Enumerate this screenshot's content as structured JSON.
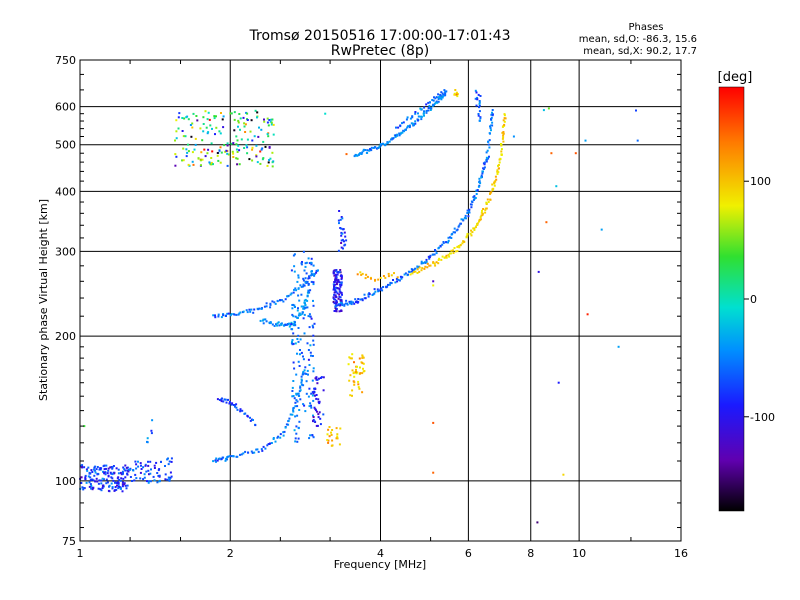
{
  "chart_data": {
    "type": "scatter",
    "title": "Tromsø 20150516 17:00:00-17:01:43",
    "subtitle": "RwPretec (8p)",
    "xlabel": "Frequency [MHz]",
    "ylabel": "Stationary phase Virtual Height [km]",
    "x_scale": "log2",
    "y_scale": "log",
    "xlim": [
      1,
      16
    ],
    "ylim": [
      75,
      750
    ],
    "x_ticks": [
      1,
      2,
      4,
      6,
      8,
      10,
      16
    ],
    "x_tick_labels": [
      "1",
      "2",
      "4",
      "6",
      "8",
      "10",
      "16"
    ],
    "y_ticks": [
      75,
      100,
      200,
      300,
      400,
      500,
      600,
      750
    ],
    "y_tick_labels": [
      "75",
      "100",
      "200",
      "300",
      "400",
      "500",
      "600",
      "750"
    ],
    "grid": true,
    "stats": {
      "header": "Phases",
      "line_o": "mean, sd,O: -86.3, 15.6",
      "line_x": "mean, sd,X:  90.2, 17.7"
    },
    "colorbar": {
      "label": "[deg]",
      "range": [
        -180,
        180
      ],
      "ticks": [
        100,
        0,
        -100
      ],
      "tick_labels": [
        "100",
        "0",
        "-100"
      ]
    },
    "series": [
      {
        "kind": "cloud",
        "x": [
          1.0,
          1.25
        ],
        "y": [
          95,
          108
        ],
        "phase": -112,
        "n": 170
      },
      {
        "kind": "cloud",
        "x": [
          1.25,
          1.46
        ],
        "y": [
          99,
          110
        ],
        "phase": -108,
        "n": 55
      },
      {
        "kind": "cloud",
        "x": [
          1.48,
          1.53
        ],
        "y": [
          100,
          112
        ],
        "phase": -105,
        "n": 18
      },
      {
        "kind": "cloud",
        "x": [
          1.36,
          1.4
        ],
        "y": [
          120,
          135
        ],
        "phase": -95,
        "n": 6
      },
      {
        "kind": "cloud",
        "x": [
          1.55,
          2.45
        ],
        "y": [
          450,
          590
        ],
        "phase": -20,
        "pspread": 170,
        "n": 200
      },
      {
        "kind": "curve",
        "x": [
          1.85,
          2.05,
          2.3,
          2.55,
          2.8,
          3.0
        ],
        "y": [
          220,
          222,
          228,
          238,
          255,
          275
        ],
        "phase": -100,
        "n": 80
      },
      {
        "kind": "curve",
        "x": [
          2.3,
          2.5,
          2.65,
          2.78,
          2.88
        ],
        "y": [
          215,
          212,
          210,
          225,
          248
        ],
        "phase": -85,
        "n": 60
      },
      {
        "kind": "curve",
        "x": [
          1.85,
          2.0,
          2.3,
          2.55,
          2.72,
          2.82
        ],
        "y": [
          110,
          112,
          116,
          125,
          145,
          170
        ],
        "phase": -95,
        "n": 85
      },
      {
        "kind": "curve",
        "x": [
          1.9,
          2.0,
          2.1,
          2.25
        ],
        "y": [
          148,
          146,
          140,
          131
        ],
        "phase": -110,
        "n": 35
      },
      {
        "kind": "cloud",
        "x": [
          2.65,
          2.95
        ],
        "y": [
          120,
          300
        ],
        "phase": -95,
        "n": 170
      },
      {
        "kind": "cloud",
        "x": [
          2.92,
          3.08
        ],
        "y": [
          130,
          165
        ],
        "phase": -125,
        "n": 40
      },
      {
        "kind": "cloud",
        "x": [
          3.22,
          3.35
        ],
        "y": [
          225,
          275
        ],
        "phase": -125,
        "n": 120
      },
      {
        "kind": "cloud",
        "x": [
          3.3,
          3.42
        ],
        "y": [
          300,
          370
        ],
        "phase": -115,
        "n": 25
      },
      {
        "kind": "curve",
        "x": [
          3.3,
          3.6,
          4.0,
          4.5,
          5.0,
          5.5,
          6.0,
          6.3,
          6.55
        ],
        "y": [
          232,
          237,
          250,
          268,
          290,
          320,
          360,
          410,
          470
        ],
        "phase": -100,
        "n": 170
      },
      {
        "kind": "curve",
        "x": [
          6.55,
          6.65,
          6.7
        ],
        "y": [
          470,
          540,
          590
        ],
        "phase": -100,
        "n": 25
      },
      {
        "kind": "curve",
        "x": [
          4.6,
          5.2,
          5.7,
          6.2,
          6.5,
          6.8,
          7.0,
          7.1
        ],
        "y": [
          270,
          285,
          305,
          335,
          370,
          420,
          490,
          580
        ],
        "phase": 110,
        "n": 140
      },
      {
        "kind": "curve",
        "x": [
          3.6,
          3.9,
          4.3
        ],
        "y": [
          270,
          262,
          268
        ],
        "phase": 125,
        "n": 20
      },
      {
        "kind": "curve",
        "x": [
          3.55,
          4.0,
          4.5,
          5.0,
          5.4
        ],
        "y": [
          475,
          495,
          540,
          590,
          640
        ],
        "phase": -90,
        "n": 120
      },
      {
        "kind": "curve",
        "x": [
          4.3,
          4.7,
          5.1,
          5.4
        ],
        "y": [
          540,
          580,
          620,
          650
        ],
        "phase": -100,
        "n": 35
      },
      {
        "kind": "cloud",
        "x": [
          6.2,
          6.35
        ],
        "y": [
          560,
          650
        ],
        "phase": -100,
        "n": 20
      },
      {
        "kind": "cloud",
        "x": [
          5.6,
          5.75
        ],
        "y": [
          630,
          650
        ],
        "phase": 115,
        "n": 8
      },
      {
        "kind": "cloud",
        "x": [
          3.45,
          3.72
        ],
        "y": [
          150,
          185
        ],
        "phase": 118,
        "n": 45
      },
      {
        "kind": "cloud",
        "x": [
          3.1,
          3.35
        ],
        "y": [
          118,
          130
        ],
        "phase": 122,
        "n": 20
      },
      {
        "kind": "points",
        "x": [
          5.1,
          5.1,
          5.1,
          3.42,
          8.25,
          8.8,
          9.1,
          9.85,
          10.4,
          12.0,
          13.0,
          8.5,
          8.7,
          8.6,
          9.3,
          5.1,
          3.1,
          1.02,
          8.3,
          10.3,
          7.4,
          13.1,
          9.0,
          11.1
        ],
        "y": [
          260,
          132,
          104,
          478,
          82,
          480,
          160,
          480,
          222,
          190,
          589,
          590,
          595,
          345,
          103,
          255,
          580,
          130,
          272,
          510,
          520,
          510,
          410,
          333
        ],
        "phase": [
          -140,
          155,
          150,
          150,
          -160,
          150,
          -120,
          155,
          170,
          -80,
          -110,
          -60,
          20,
          150,
          110,
          100,
          -40,
          0,
          -130,
          -80,
          -90,
          -100,
          -60,
          -80
        ]
      }
    ]
  }
}
